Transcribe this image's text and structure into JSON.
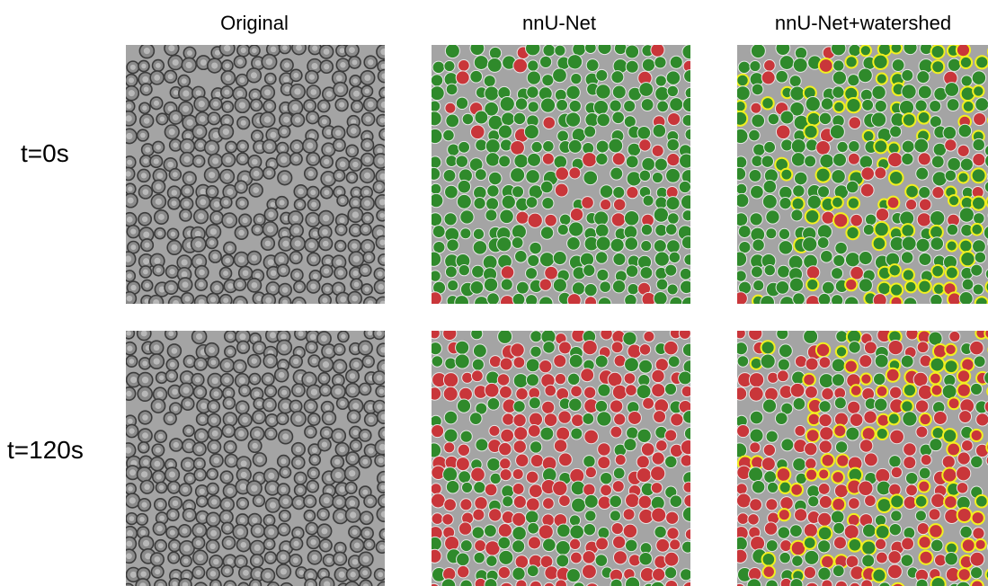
{
  "columns": [
    "Original",
    "nnU-Net",
    "nnU-Net+watershed"
  ],
  "rows": [
    "t=0s",
    "t=120s"
  ]
}
